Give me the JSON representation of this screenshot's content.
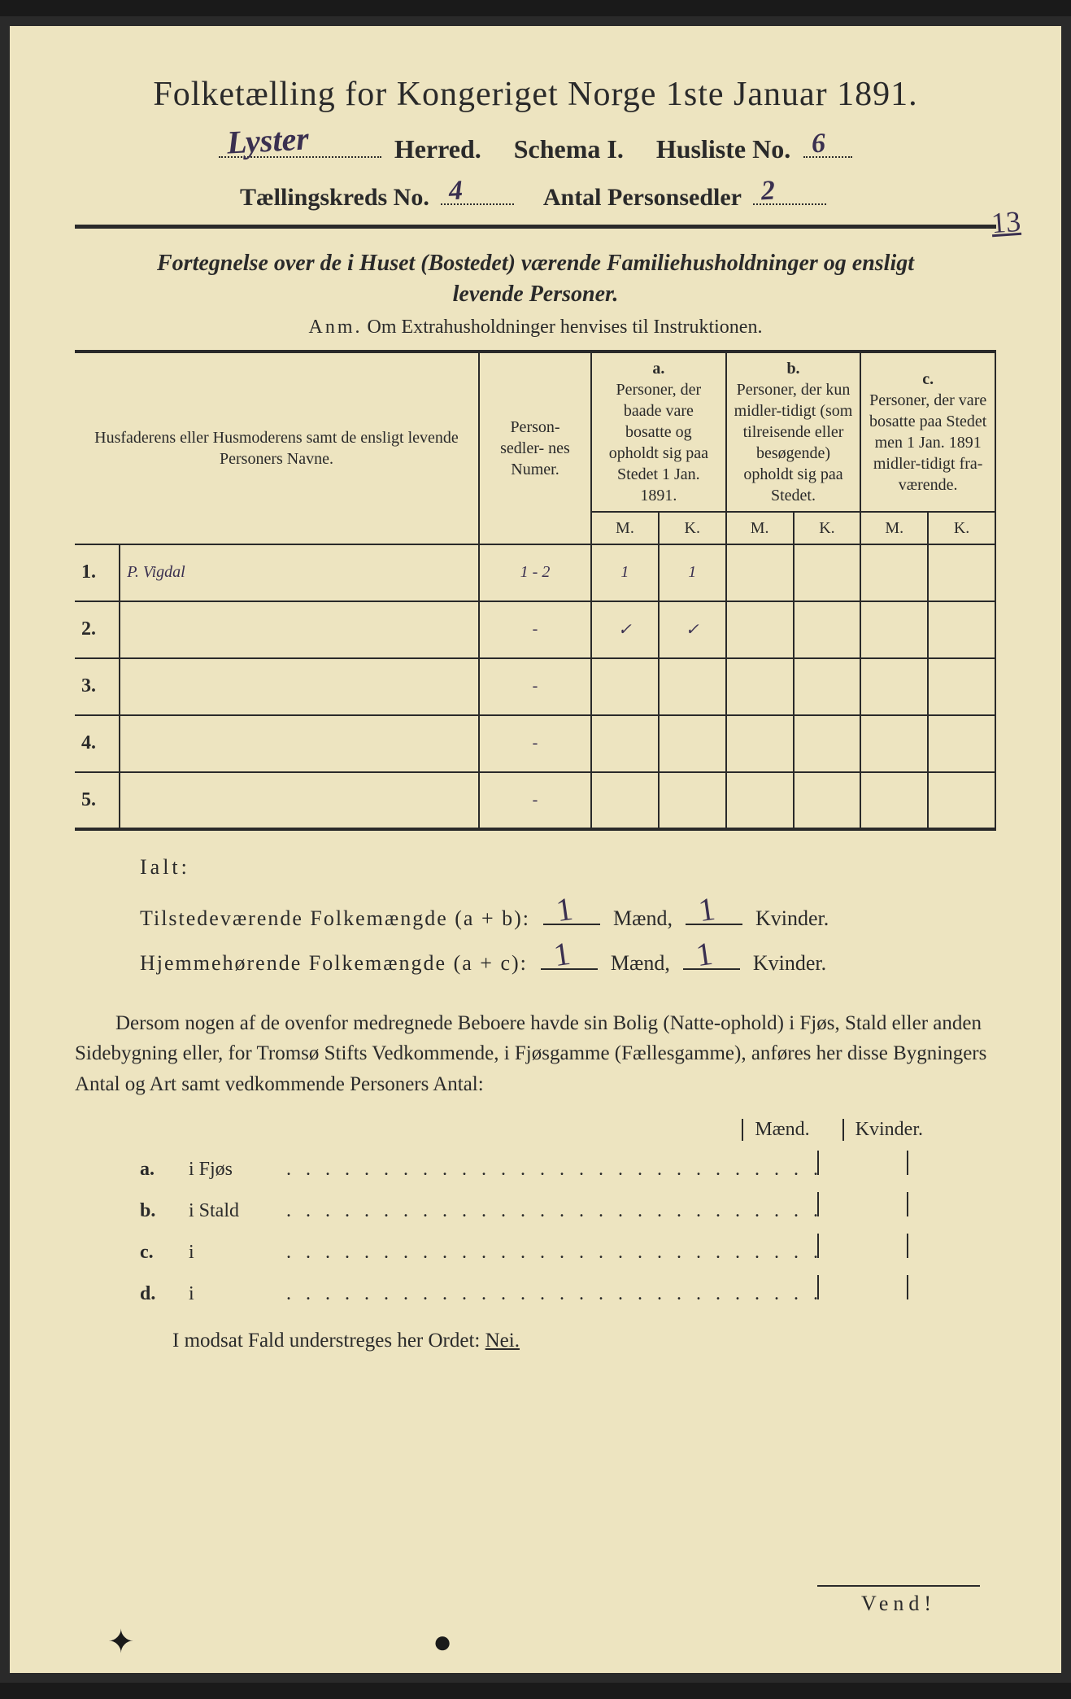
{
  "title": "Folketælling for Kongeriget Norge 1ste Januar 1891.",
  "line2": {
    "herred_value": "Lyster",
    "herred_label": "Herred.",
    "schema_label": "Schema I.",
    "husliste_label": "Husliste No.",
    "husliste_value": "6"
  },
  "line3": {
    "kreds_label": "Tællingskreds No.",
    "kreds_value": "4",
    "antal_label": "Antal Personsedler",
    "antal_value": "2"
  },
  "margin_note": "13",
  "subtitle_line1": "Fortegnelse over de i Huset (Bostedet) værende Familiehusholdninger og ensligt",
  "subtitle_line2": "levende Personer.",
  "anm_prefix": "Anm.",
  "anm_text": "Om Extrahusholdninger henvises til Instruktionen.",
  "table": {
    "col1_header": "Husfaderens eller Husmoderens samt de ensligt levende Personers Navne.",
    "col2_header": "Person-\nsedler-\nnes\nNumer.",
    "col_a_label": "a.",
    "col_a_text": "Personer, der baade vare bosatte og opholdt sig paa Stedet 1 Jan. 1891.",
    "col_b_label": "b.",
    "col_b_text": "Personer, der kun midler-tidigt (som tilreisende eller besøgende) opholdt sig paa Stedet.",
    "col_c_label": "c.",
    "col_c_text": "Personer, der vare bosatte paa Stedet men 1 Jan. 1891 midler-tidigt fra-værende.",
    "mk_m": "M.",
    "mk_k": "K.",
    "rows": [
      {
        "num": "1.",
        "name": "P. Vigdal",
        "sedler": "1 - 2",
        "a_m": "1",
        "a_k": "1",
        "b_m": "",
        "b_k": "",
        "c_m": "",
        "c_k": ""
      },
      {
        "num": "2.",
        "name": "",
        "sedler": "-",
        "a_m": "✓",
        "a_k": "✓",
        "b_m": "",
        "b_k": "",
        "c_m": "",
        "c_k": ""
      },
      {
        "num": "3.",
        "name": "",
        "sedler": "-",
        "a_m": "",
        "a_k": "",
        "b_m": "",
        "b_k": "",
        "c_m": "",
        "c_k": ""
      },
      {
        "num": "4.",
        "name": "",
        "sedler": "-",
        "a_m": "",
        "a_k": "",
        "b_m": "",
        "b_k": "",
        "c_m": "",
        "c_k": ""
      },
      {
        "num": "5.",
        "name": "",
        "sedler": "-",
        "a_m": "",
        "a_k": "",
        "b_m": "",
        "b_k": "",
        "c_m": "",
        "c_k": ""
      }
    ]
  },
  "ialt": {
    "heading": "Ialt:",
    "row1_label": "Tilstedeværende Folkemængde (a + b):",
    "row2_label": "Hjemmehørende Folkemængde (a + c):",
    "maend": "Mænd,",
    "kvinder": "Kvinder.",
    "r1_m": "1",
    "r1_k": "1",
    "r2_m": "1",
    "r2_k": "1"
  },
  "paragraph": "Dersom nogen af de ovenfor medregnede Beboere havde sin Bolig (Natte-ophold) i Fjøs, Stald eller anden Sidebygning eller, for Tromsø Stifts Vedkommende, i Fjøsgamme (Fællesgamme), anføres her disse Bygningers Antal og Art samt vedkommende Personers Antal:",
  "bygn": {
    "hdr_m": "Mænd.",
    "hdr_k": "Kvinder.",
    "rows": [
      {
        "lbl": "a.",
        "txt": "i    Fjøs"
      },
      {
        "lbl": "b.",
        "txt": "i    Stald"
      },
      {
        "lbl": "c.",
        "txt": "i"
      },
      {
        "lbl": "d.",
        "txt": "i"
      }
    ]
  },
  "nei_line_prefix": "I modsat Fald understreges her Ordet: ",
  "nei_word": "Nei.",
  "vend": "Vend!",
  "colors": {
    "paper": "#ede4c0",
    "ink": "#2a2a2a",
    "handwriting": "#3a3050",
    "border": "#2a2a2a"
  }
}
